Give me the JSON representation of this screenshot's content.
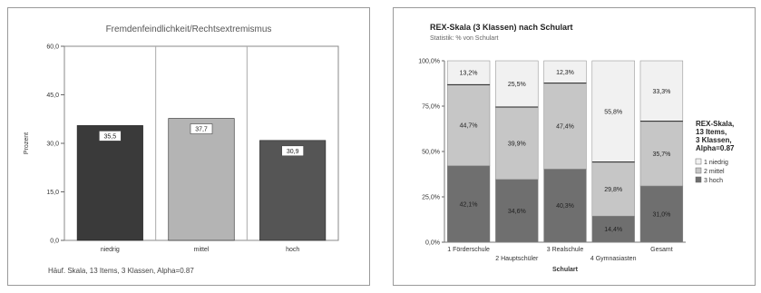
{
  "charts": [
    {
      "chart_data": {
        "type": "bar",
        "title": "Fremdenfeindlichkeit/Rechtsextremismus",
        "ylabel": "Prozent",
        "footer": "Häuf. Skala, 13 Items, 3 Klassen, Alpha=0.87",
        "ylim": [
          0,
          60
        ],
        "yticks": [
          0,
          15,
          30,
          45,
          60
        ],
        "ytick_labels": [
          "0,0",
          "15,0",
          "30,0",
          "45,0",
          "60,0"
        ],
        "categories": [
          "niedrig",
          "mittel",
          "hoch"
        ],
        "values": [
          35.5,
          37.7,
          30.9
        ],
        "value_labels": [
          "35,5",
          "37,7",
          "30,9"
        ],
        "colors": [
          "#3a3a3a",
          "#b4b4b4",
          "#555555"
        ]
      }
    },
    {
      "chart_data": {
        "type": "bar",
        "stacked": true,
        "title": "REX-Skala (3 Klassen) nach Schulart",
        "subtitle": "Statistik: % von Schulart",
        "xlabel": "Schulart",
        "ylim": [
          0,
          100
        ],
        "yticks": [
          0,
          25,
          50,
          75,
          100
        ],
        "ytick_labels": [
          "0,0%",
          "25,0%",
          "50,0%",
          "75,0%",
          "100,0%"
        ],
        "categories": [
          "1 Förderschule",
          "2 Hauptschüler",
          "3 Realschule",
          "4 Gymnasiasten",
          "Gesamt"
        ],
        "series": [
          {
            "name": "3 hoch",
            "values": [
              42.1,
              34.6,
              40.3,
              14.4,
              31.0
            ],
            "labels": [
              "42,1%",
              "34,6%",
              "40,3%",
              "14,4%",
              "31,0%"
            ],
            "color": "#6f6f6f"
          },
          {
            "name": "2 mittel",
            "values": [
              44.7,
              39.9,
              47.4,
              29.8,
              35.7
            ],
            "labels": [
              "44,7%",
              "39,9%",
              "47,4%",
              "29,8%",
              "35,7%"
            ],
            "color": "#c6c6c6"
          },
          {
            "name": "1 niedrig",
            "values": [
              13.2,
              25.5,
              12.3,
              55.8,
              33.3
            ],
            "labels": [
              "13,2%",
              "25,5%",
              "12,3%",
              "55,8%",
              "33,3%"
            ],
            "color": "#f1f1f1"
          }
        ],
        "legend_title": "REX-Skala, 13 Items, 3 Klassen, Alpha=0.87",
        "legend_position": "right"
      }
    }
  ]
}
